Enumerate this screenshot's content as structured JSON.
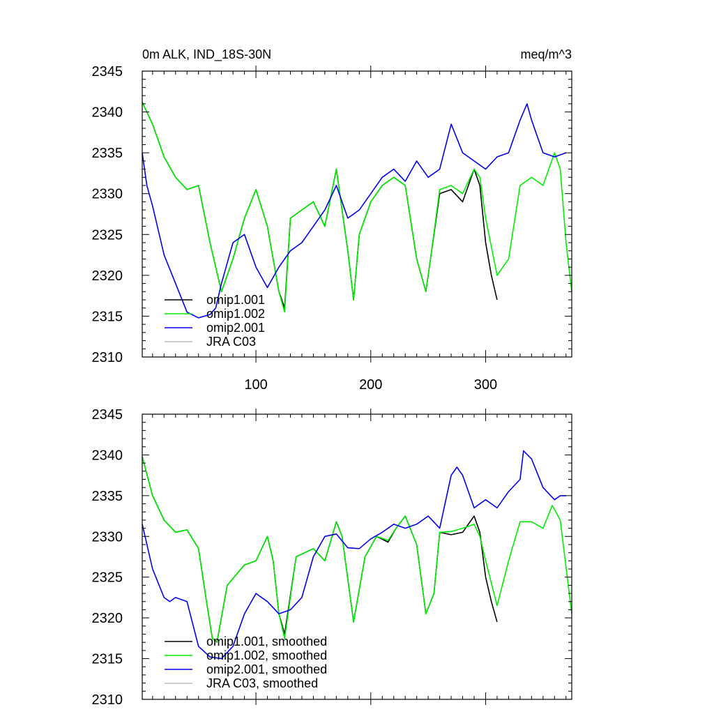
{
  "chart_data": [
    {
      "type": "line",
      "title": "0m ALK, IND_18S-30N",
      "units": "meq/m^3",
      "xlabel": "",
      "ylabel": "",
      "xlim": [
        1,
        375
      ],
      "ylim": [
        2310,
        2345
      ],
      "xticks": [
        100,
        200,
        300
      ],
      "xtick_labels": [
        "100",
        "200",
        "300"
      ],
      "yticks": [
        2310,
        2315,
        2320,
        2325,
        2330,
        2335,
        2340,
        2345
      ],
      "ytick_labels": [
        "2310",
        "2315",
        "2320",
        "2325",
        "2330",
        "2335",
        "2340",
        "2345"
      ],
      "legend_position": "bottom-left",
      "series": [
        {
          "name": "omip1.001",
          "color": "#000000",
          "x": [
            1,
            10,
            20,
            30,
            40,
            50,
            60,
            70,
            80,
            90,
            100,
            110,
            120,
            125,
            130,
            140,
            150,
            160,
            170,
            180,
            185,
            190,
            200,
            210,
            220,
            230,
            240,
            248,
            252,
            260,
            270,
            280,
            290,
            295,
            300,
            305,
            310
          ],
          "y": [
            2341.2,
            2338.5,
            2334.5,
            2332,
            2330.5,
            2331,
            2324,
            2318,
            2322,
            2327,
            2330.5,
            2326,
            2318,
            2316,
            2327,
            2328,
            2329,
            2326,
            2333,
            2323,
            2317,
            2325,
            2329,
            2331,
            2332,
            2331,
            2322,
            2318,
            2322,
            2330,
            2330.5,
            2329,
            2333,
            2331,
            2324,
            2320,
            2317
          ]
        },
        {
          "name": "omip1.002",
          "color": "#00ee00",
          "x": [
            1,
            10,
            20,
            30,
            40,
            50,
            60,
            70,
            80,
            90,
            100,
            110,
            120,
            125,
            130,
            140,
            150,
            160,
            170,
            180,
            185,
            190,
            200,
            210,
            220,
            230,
            240,
            248,
            252,
            260,
            270,
            280,
            290,
            295,
            300,
            310,
            320,
            330,
            340,
            350,
            360,
            365,
            370,
            375
          ],
          "y": [
            2341.2,
            2338.5,
            2334.5,
            2332,
            2330.5,
            2331,
            2324,
            2318,
            2322,
            2327,
            2330.5,
            2326,
            2318,
            2315.5,
            2327,
            2328,
            2329,
            2326,
            2333,
            2323,
            2317,
            2325,
            2329,
            2331,
            2332,
            2331,
            2322,
            2318,
            2322,
            2330.5,
            2331,
            2330,
            2333,
            2332,
            2327,
            2320,
            2322,
            2331,
            2332,
            2331,
            2335,
            2333,
            2324,
            2318
          ]
        },
        {
          "name": "omip2.001",
          "color": "#0000ee",
          "x": [
            1,
            5,
            10,
            20,
            30,
            40,
            50,
            60,
            65,
            70,
            80,
            90,
            100,
            110,
            120,
            130,
            140,
            150,
            160,
            170,
            180,
            190,
            200,
            210,
            220,
            230,
            240,
            250,
            260,
            270,
            280,
            290,
            300,
            310,
            320,
            330,
            336,
            340,
            350,
            360,
            370
          ],
          "y": [
            2335,
            2331,
            2328.5,
            2322.5,
            2319,
            2315.5,
            2314.8,
            2315.2,
            2316,
            2319,
            2324,
            2325,
            2321,
            2318.5,
            2321,
            2323,
            2324,
            2326,
            2328,
            2331,
            2327,
            2328,
            2330,
            2332,
            2333,
            2331.5,
            2334,
            2332,
            2333,
            2338.5,
            2335,
            2334,
            2333,
            2334.5,
            2335,
            2339,
            2341,
            2339,
            2335,
            2334.5,
            2335
          ]
        },
        {
          "name": "JRA C03",
          "color": "#bbbbbb",
          "x": [],
          "y": []
        }
      ]
    },
    {
      "type": "line",
      "title": "",
      "xlabel": "",
      "ylabel": "",
      "xlim": [
        1,
        375
      ],
      "ylim": [
        2310,
        2345
      ],
      "xticks": [
        100,
        200,
        300
      ],
      "xtick_labels": [],
      "yticks": [
        2310,
        2315,
        2320,
        2325,
        2330,
        2335,
        2340,
        2345
      ],
      "ytick_labels": [
        "2310",
        "2315",
        "2320",
        "2325",
        "2330",
        "2335",
        "2340",
        "2345"
      ],
      "legend_position": "bottom-left",
      "series": [
        {
          "name": "omip1.001, smoothed",
          "color": "#000000",
          "x": [
            1,
            10,
            20,
            30,
            40,
            50,
            57,
            62,
            66,
            75,
            90,
            100,
            110,
            115,
            120,
            125,
            135,
            150,
            160,
            170,
            175,
            185,
            195,
            205,
            215,
            222,
            230,
            240,
            248,
            255,
            260,
            270,
            280,
            290,
            295,
            300,
            305,
            310
          ],
          "y": [
            2339.8,
            2335,
            2332,
            2330.5,
            2330.8,
            2328.5,
            2322,
            2317.5,
            2317,
            2324,
            2326.5,
            2327,
            2330,
            2327,
            2320.5,
            2318,
            2327.5,
            2328.5,
            2327,
            2331.8,
            2330,
            2319.5,
            2327.5,
            2330,
            2329.3,
            2331,
            2332.5,
            2329,
            2320.5,
            2323,
            2330.5,
            2330.2,
            2330.5,
            2332.5,
            2330.5,
            2325,
            2322,
            2319.5
          ]
        },
        {
          "name": "omip1.002, smoothed",
          "color": "#00ee00",
          "x": [
            1,
            10,
            20,
            30,
            40,
            50,
            57,
            62,
            66,
            75,
            90,
            100,
            110,
            115,
            120,
            125,
            135,
            150,
            160,
            170,
            175,
            185,
            195,
            205,
            215,
            222,
            230,
            240,
            248,
            255,
            260,
            270,
            280,
            290,
            295,
            300,
            310,
            320,
            330,
            340,
            350,
            358,
            365,
            375
          ],
          "y": [
            2339.8,
            2335,
            2332,
            2330.5,
            2330.8,
            2328.5,
            2322,
            2317.5,
            2317,
            2324,
            2326.5,
            2327,
            2330,
            2327,
            2320.5,
            2317.5,
            2327.5,
            2328.5,
            2327,
            2331.8,
            2330,
            2319.5,
            2327.5,
            2330,
            2329.5,
            2331,
            2332.5,
            2329,
            2320.5,
            2323,
            2330.5,
            2330.6,
            2331,
            2331.5,
            2330,
            2327,
            2321.5,
            2327,
            2331.8,
            2331.8,
            2331,
            2333.8,
            2332,
            2320.5
          ]
        },
        {
          "name": "omip2.001, smoothed",
          "color": "#0000ee",
          "x": [
            1,
            10,
            20,
            25,
            30,
            40,
            50,
            60,
            70,
            80,
            90,
            100,
            110,
            120,
            130,
            140,
            150,
            160,
            170,
            180,
            190,
            200,
            210,
            220,
            230,
            240,
            250,
            260,
            270,
            275,
            280,
            290,
            300,
            310,
            320,
            330,
            333,
            340,
            350,
            360,
            365,
            370
          ],
          "y": [
            2331.5,
            2326,
            2322.5,
            2322,
            2322.5,
            2322,
            2316.5,
            2315.2,
            2315,
            2316.5,
            2320.5,
            2323,
            2322,
            2320.5,
            2321,
            2322.5,
            2327.5,
            2330,
            2330.3,
            2328.6,
            2328.5,
            2329.7,
            2330.5,
            2331.5,
            2331,
            2331.5,
            2332.5,
            2331,
            2337.5,
            2338.5,
            2337.5,
            2333.5,
            2334.5,
            2333.5,
            2335.5,
            2337,
            2340.5,
            2339.5,
            2336,
            2334.5,
            2335,
            2335
          ]
        },
        {
          "name": "JRA C03, smoothed",
          "color": "#bbbbbb",
          "x": [],
          "y": []
        }
      ]
    }
  ]
}
